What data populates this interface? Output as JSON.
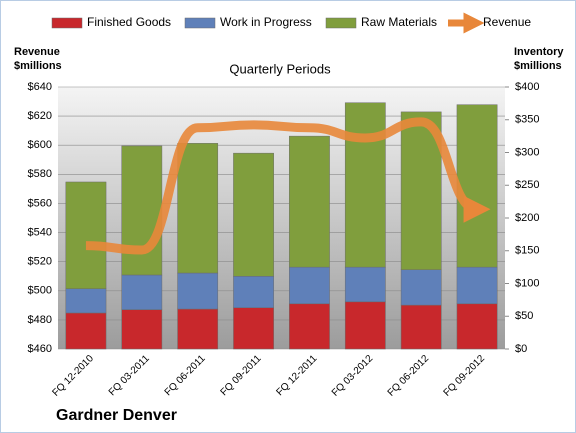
{
  "chart_data": {
    "type": "bar",
    "title": "Quarterly Periods",
    "y_label": "Revenue $millions",
    "y2_label": "Inventory $millions",
    "footer": "Gardner Denver",
    "categories": [
      "FQ 12-2010",
      "FQ 03-2011",
      "FQ 06-2011",
      "FQ 09-2011",
      "FQ 12-2011",
      "FQ 03-2012",
      "FQ 06-2012",
      "FQ 09-2012"
    ],
    "series": [
      {
        "name": "Finished Goods",
        "type": "bar",
        "axis": "y2",
        "color": "#c8282c",
        "values": [
          55,
          60,
          61,
          63,
          69,
          72,
          67,
          69
        ]
      },
      {
        "name": "Work in Progress",
        "type": "bar",
        "axis": "y2",
        "color": "#5f80b9",
        "values": [
          37,
          53,
          55,
          48,
          56,
          53,
          54,
          56
        ]
      },
      {
        "name": "Raw Materials",
        "type": "bar",
        "axis": "y2",
        "color": "#809e3d",
        "values": [
          163,
          197,
          198,
          188,
          200,
          251,
          241,
          248
        ]
      },
      {
        "name": "Revenue",
        "type": "line",
        "axis": "y",
        "color": "#e8873a",
        "values": [
          531,
          528,
          612,
          614,
          612,
          605,
          616,
          556
        ]
      }
    ],
    "ylim": [
      460,
      640
    ],
    "yticks": [
      {
        "value": 460,
        "label": "$460"
      },
      {
        "value": 480,
        "label": "$480"
      },
      {
        "value": 500,
        "label": "$500"
      },
      {
        "value": 520,
        "label": "$520"
      },
      {
        "value": 540,
        "label": "$540"
      },
      {
        "value": 560,
        "label": "$560"
      },
      {
        "value": 580,
        "label": "$580"
      },
      {
        "value": 600,
        "label": "$600"
      },
      {
        "value": 620,
        "label": "$620"
      },
      {
        "value": 640,
        "label": "$640"
      }
    ],
    "y2lim": [
      0,
      400
    ],
    "y2ticks": [
      {
        "value": 0,
        "label": "$0"
      },
      {
        "value": 50,
        "label": "$50"
      },
      {
        "value": 100,
        "label": "$100"
      },
      {
        "value": 150,
        "label": "$150"
      },
      {
        "value": 200,
        "label": "$200"
      },
      {
        "value": 250,
        "label": "$250"
      },
      {
        "value": 300,
        "label": "$300"
      },
      {
        "value": 350,
        "label": "$350"
      },
      {
        "value": 400,
        "label": "$400"
      }
    ],
    "grid": true
  }
}
